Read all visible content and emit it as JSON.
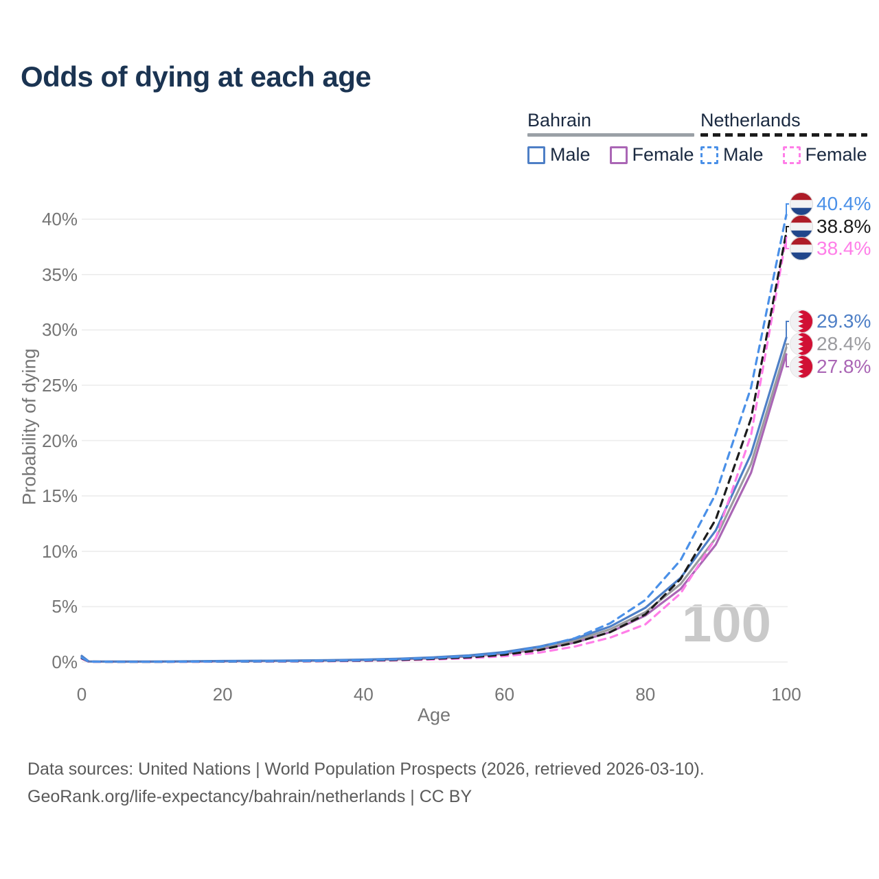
{
  "title": "Odds of dying at each age",
  "watermark": "100",
  "legend": {
    "groups": [
      {
        "name": "Bahrain",
        "style": "solid",
        "underline_color": "#9aa0a6",
        "items": [
          {
            "label": "Male",
            "color": "#4e7fc6"
          },
          {
            "label": "Female",
            "color": "#aa66b5"
          }
        ]
      },
      {
        "name": "Netherlands",
        "style": "dashed",
        "underline_color": "#1c1c1c",
        "items": [
          {
            "label": "Male",
            "color": "#4a90e8"
          },
          {
            "label": "Female",
            "color": "#ff7ee8"
          }
        ]
      }
    ]
  },
  "axes": {
    "x": {
      "label": "Age",
      "ticks": [
        "0",
        "20",
        "40",
        "60",
        "80",
        "100"
      ],
      "tick_values": [
        0,
        20,
        40,
        60,
        80,
        100
      ]
    },
    "y": {
      "label": "Probability of dying",
      "ticks": [
        "0%",
        "5%",
        "10%",
        "15%",
        "20%",
        "25%",
        "30%",
        "35%",
        "40%"
      ],
      "tick_values": [
        0,
        5,
        10,
        15,
        20,
        25,
        30,
        35,
        40
      ]
    }
  },
  "source": {
    "line1": "Data sources: United Nations | World Population Prospects (2026, retrieved 2026-03-10).",
    "line2": "GeoRank.org/life-expectancy/bahrain/netherlands | CC BY"
  },
  "flag_colors": {
    "netherlands_red": "#AE1C28",
    "netherlands_white": "#f2f2f4",
    "netherlands_blue": "#21468B",
    "bahrain_red": "#d11034",
    "bahrain_white": "#f1f1f3"
  },
  "chart_data": {
    "type": "line",
    "title": "Odds of dying at each age",
    "xlabel": "Age",
    "ylabel": "Probability of dying",
    "xlim": [
      0,
      100
    ],
    "ylim": [
      0,
      42
    ],
    "grid": "horizontal-only",
    "legend_position": "top-right",
    "x": [
      0,
      1,
      5,
      10,
      15,
      20,
      25,
      30,
      35,
      40,
      45,
      50,
      55,
      60,
      65,
      70,
      75,
      80,
      85,
      90,
      95,
      100
    ],
    "series": [
      {
        "name": "Bahrain Female",
        "country": "Bahrain",
        "sex": "Female",
        "flag": "bahrain",
        "style": "solid",
        "color": "#aa66b5",
        "end_label": "27.8%",
        "values": [
          0.45,
          0.04,
          0.03,
          0.03,
          0.04,
          0.06,
          0.08,
          0.1,
          0.13,
          0.18,
          0.24,
          0.34,
          0.5,
          0.75,
          1.15,
          1.75,
          2.7,
          4.2,
          6.6,
          10.6,
          17.1,
          27.8
        ]
      },
      {
        "name": "Bahrain Both Sexes",
        "country": "Bahrain",
        "sex": "Both",
        "flag": "bahrain",
        "style": "solid",
        "color": "#9b9b9f",
        "end_label": "28.4%",
        "values": [
          0.5,
          0.04,
          0.03,
          0.03,
          0.05,
          0.08,
          0.1,
          0.12,
          0.15,
          0.2,
          0.27,
          0.38,
          0.55,
          0.82,
          1.28,
          1.93,
          2.95,
          4.5,
          7.05,
          11.2,
          17.9,
          28.4
        ]
      },
      {
        "name": "Bahrain Male",
        "country": "Bahrain",
        "sex": "Male",
        "flag": "bahrain",
        "style": "solid",
        "color": "#4e7fc6",
        "end_label": "29.3%",
        "values": [
          0.55,
          0.05,
          0.04,
          0.04,
          0.06,
          0.09,
          0.11,
          0.13,
          0.16,
          0.22,
          0.3,
          0.42,
          0.6,
          0.9,
          1.4,
          2.1,
          3.2,
          4.9,
          7.6,
          11.9,
          18.8,
          29.3
        ]
      },
      {
        "name": "Netherlands Female",
        "country": "Netherlands",
        "sex": "Female",
        "flag": "netherlands",
        "style": "dashed",
        "color": "#ff7ee8",
        "end_label": "38.4%",
        "values": [
          0.3,
          0.02,
          0.02,
          0.02,
          0.02,
          0.03,
          0.04,
          0.05,
          0.07,
          0.1,
          0.15,
          0.23,
          0.34,
          0.53,
          0.85,
          1.4,
          2.2,
          3.4,
          6.2,
          11.2,
          20.5,
          38.4
        ]
      },
      {
        "name": "Netherlands Both Sexes",
        "country": "Netherlands",
        "sex": "Both",
        "flag": "netherlands",
        "style": "dashed",
        "color": "#1c1c1c",
        "end_label": "38.8%",
        "values": [
          0.35,
          0.03,
          0.02,
          0.02,
          0.03,
          0.04,
          0.05,
          0.07,
          0.09,
          0.13,
          0.19,
          0.29,
          0.42,
          0.66,
          1.08,
          1.75,
          2.7,
          4.3,
          7.5,
          12.9,
          22.0,
          38.8
        ]
      },
      {
        "name": "Netherlands Male",
        "country": "Netherlands",
        "sex": "Male",
        "flag": "netherlands",
        "style": "dashed",
        "color": "#4a90e8",
        "end_label": "40.4%",
        "values": [
          0.4,
          0.03,
          0.02,
          0.02,
          0.03,
          0.05,
          0.06,
          0.08,
          0.11,
          0.16,
          0.24,
          0.36,
          0.52,
          0.82,
          1.35,
          2.15,
          3.5,
          5.6,
          9.2,
          15.2,
          24.8,
          40.4
        ]
      }
    ]
  }
}
